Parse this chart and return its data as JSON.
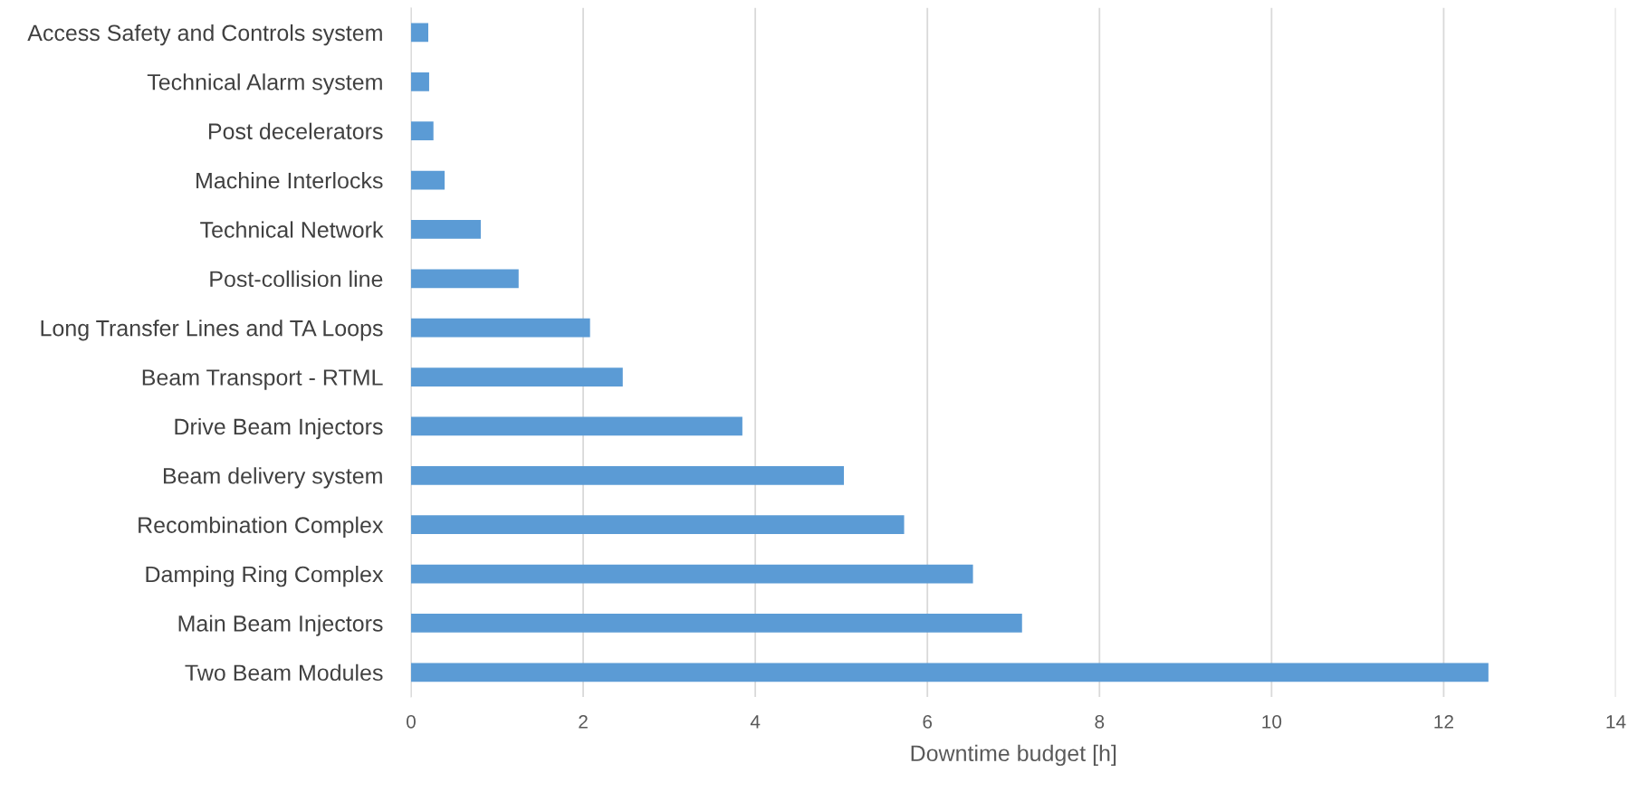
{
  "chart_data": {
    "type": "bar",
    "orientation": "horizontal",
    "xlabel": "Downtime budget [h]",
    "categories": [
      "Access Safety and Controls system",
      "Technical Alarm system",
      "Post decelerators",
      "Machine Interlocks",
      "Technical Network",
      "Post-collision line",
      "Long Transfer Lines and TA Loops",
      "Beam Transport - RTML",
      "Drive Beam Injectors",
      "Beam delivery system",
      "Recombination Complex",
      "Damping Ring Complex",
      "Main Beam Injectors",
      "Two Beam Modules"
    ],
    "values": [
      0.2,
      0.21,
      0.26,
      0.39,
      0.81,
      1.25,
      2.08,
      2.46,
      3.85,
      5.03,
      5.73,
      6.53,
      7.1,
      12.52
    ],
    "color": "#5b9bd5",
    "xlim": [
      0,
      14
    ],
    "xticks": [
      0,
      2,
      4,
      6,
      8,
      10,
      12,
      14
    ],
    "grid": "x"
  }
}
